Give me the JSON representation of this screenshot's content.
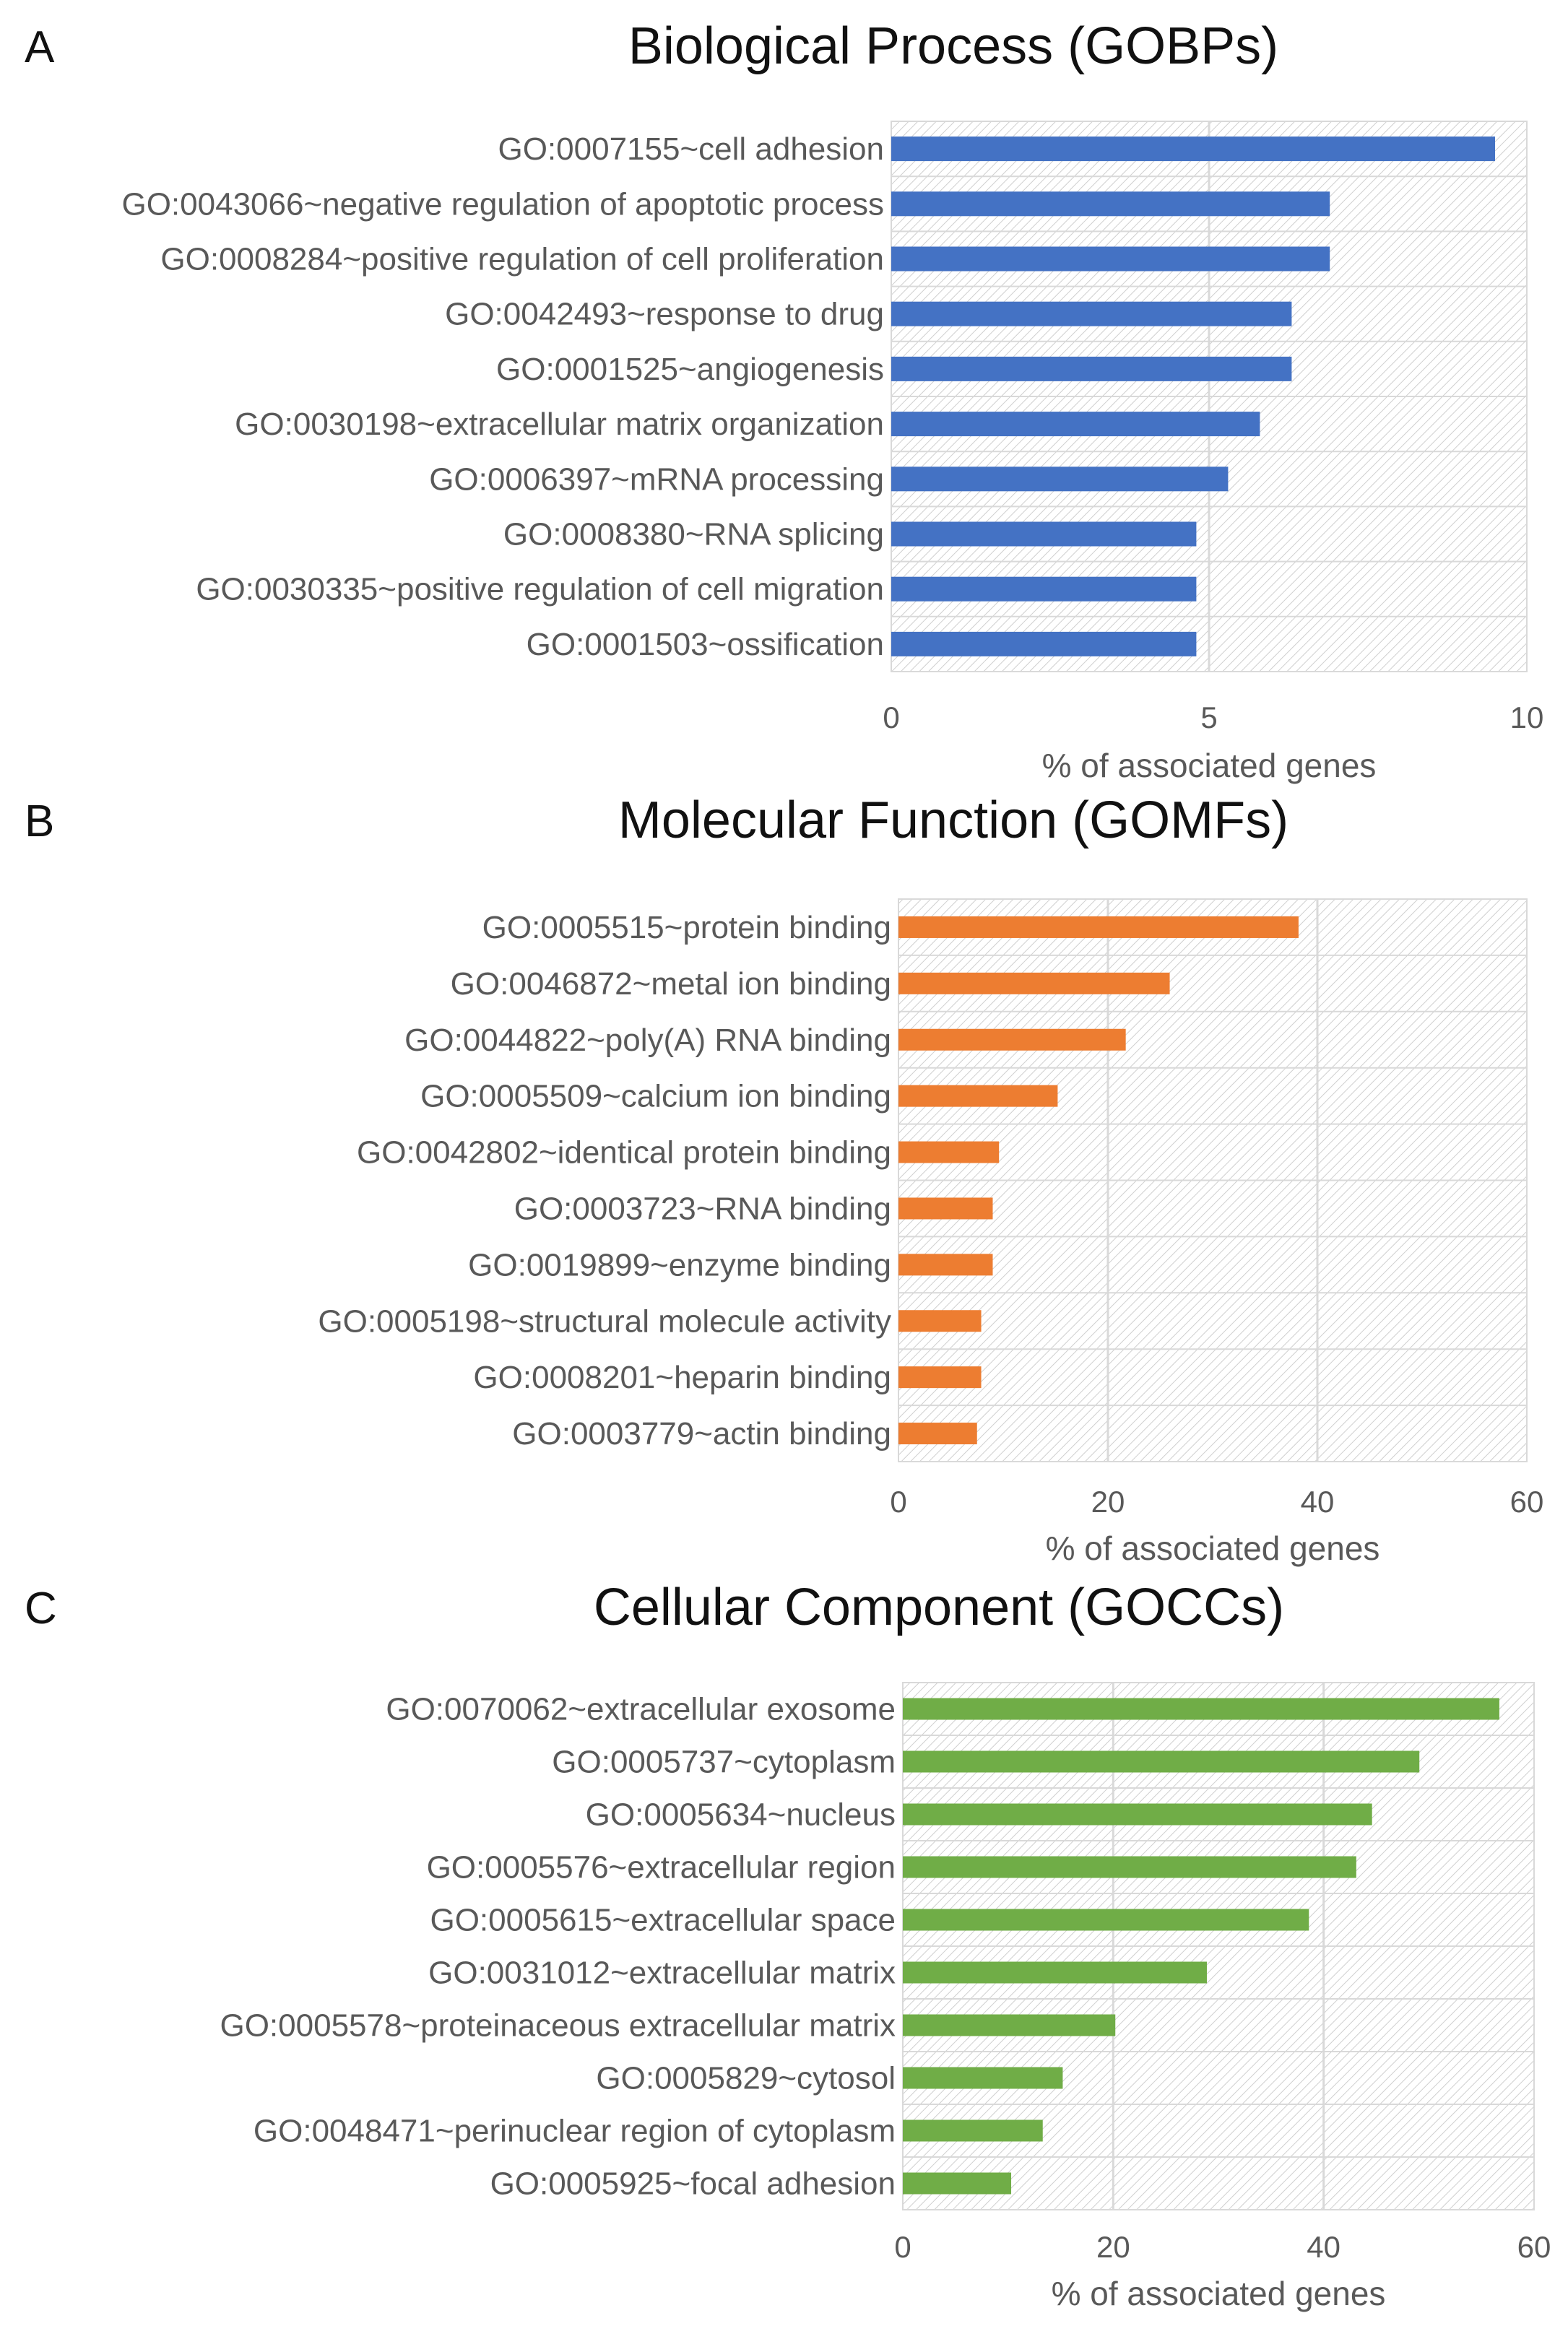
{
  "chart_data": [
    {
      "type": "bar",
      "orientation": "horizontal",
      "panel": "A",
      "title": "Biological Process (GOBPs)",
      "xlabel": "% of associated genes",
      "ylabel": "",
      "xlim": [
        0,
        10
      ],
      "ticks": [
        "0",
        "5",
        "10"
      ],
      "grid": true,
      "color": "#4472C4",
      "categories": [
        "GO:0007155~cell adhesion",
        "GO:0043066~negative regulation of apoptotic process",
        "GO:0008284~positive regulation of cell proliferation",
        "GO:0042493~response to drug",
        "GO:0001525~angiogenesis",
        "GO:0030198~extracellular matrix organization",
        "GO:0006397~mRNA processing",
        "GO:0008380~RNA splicing",
        "GO:0030335~positive regulation of cell migration",
        "GO:0001503~ossification"
      ],
      "values": [
        9.5,
        6.9,
        6.9,
        6.3,
        6.3,
        5.8,
        5.3,
        4.8,
        4.8,
        4.8
      ]
    },
    {
      "type": "bar",
      "orientation": "horizontal",
      "panel": "B",
      "title": "Molecular Function (GOMFs)",
      "xlabel": "% of associated genes",
      "ylabel": "",
      "xlim": [
        0,
        60
      ],
      "ticks": [
        "0",
        "20",
        "40",
        "60"
      ],
      "grid": true,
      "color": "#ED7D31",
      "categories": [
        "GO:0005515~protein binding",
        "GO:0046872~metal ion binding",
        "GO:0044822~poly(A) RNA binding",
        "GO:0005509~calcium ion binding",
        "GO:0042802~identical protein binding",
        "GO:0003723~RNA binding",
        "GO:0019899~enzyme binding",
        "GO:0005198~structural molecule activity",
        "GO:0008201~heparin binding",
        "GO:0003779~actin binding"
      ],
      "values": [
        38.2,
        25.9,
        21.7,
        15.2,
        9.6,
        9.0,
        9.0,
        7.9,
        7.9,
        7.5
      ]
    },
    {
      "type": "bar",
      "orientation": "horizontal",
      "panel": "C",
      "title": "Cellular Component (GOCCs)",
      "xlabel": "% of associated genes",
      "ylabel": "",
      "xlim": [
        0,
        60
      ],
      "ticks": [
        "0",
        "20",
        "40",
        "60"
      ],
      "grid": true,
      "color": "#70AD47",
      "categories": [
        "GO:0070062~extracellular exosome",
        "GO:0005737~cytoplasm",
        "GO:0005634~nucleus",
        "GO:0005576~extracellular region",
        "GO:0005615~extracellular space",
        "GO:0031012~extracellular matrix",
        "GO:0005578~proteinaceous extracellular matrix",
        "GO:0005829~cytosol",
        "GO:0048471~perinuclear region of cytoplasm",
        "GO:0005925~focal adhesion"
      ],
      "values": [
        56.7,
        49.1,
        44.6,
        43.1,
        38.6,
        28.9,
        20.2,
        15.2,
        13.3,
        10.3
      ]
    }
  ]
}
